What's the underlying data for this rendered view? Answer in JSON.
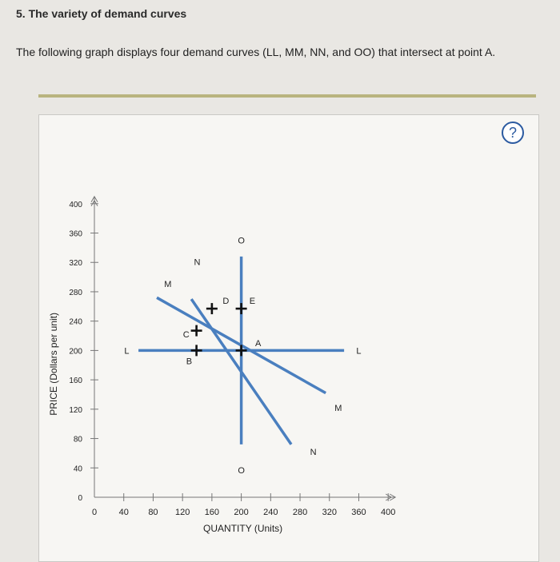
{
  "question": {
    "heading": "5. The variety of demand curves",
    "intro": "The following graph displays four demand curves (LL, MM, NN, and OO) that intersect at point A."
  },
  "help_button": {
    "label": "?"
  },
  "chart_data": {
    "type": "line",
    "xlabel": "QUANTITY (Units)",
    "ylabel": "PRICE (Dollars per unit)",
    "xlim": [
      0,
      400
    ],
    "ylim": [
      0,
      400
    ],
    "xticks": [
      0,
      40,
      80,
      120,
      160,
      200,
      240,
      280,
      320,
      360,
      400
    ],
    "yticks": [
      0,
      40,
      80,
      120,
      160,
      200,
      240,
      280,
      320,
      360,
      400
    ],
    "line_color": "#4a7fbf",
    "series": [
      {
        "name": "L",
        "endpoints": [
          [
            60,
            200
          ],
          [
            340,
            200
          ]
        ],
        "labels": [
          {
            "text": "L",
            "at": [
              44,
              200
            ]
          },
          {
            "text": "L",
            "at": [
              360,
              200
            ]
          }
        ]
      },
      {
        "name": "M",
        "endpoints": [
          [
            85,
            272
          ],
          [
            315,
            142
          ]
        ],
        "labels": [
          {
            "text": "M",
            "at": [
              100,
              291
            ]
          },
          {
            "text": "M",
            "at": [
              332,
              122
            ]
          }
        ]
      },
      {
        "name": "N",
        "endpoints": [
          [
            132,
            270
          ],
          [
            268,
            72
          ]
        ],
        "labels": [
          {
            "text": "N",
            "at": [
              140,
              321
            ]
          },
          {
            "text": "N",
            "at": [
              298,
              62
            ]
          }
        ]
      },
      {
        "name": "O",
        "endpoints": [
          [
            200,
            328
          ],
          [
            200,
            72
          ]
        ],
        "labels": [
          {
            "text": "O",
            "at": [
              200,
              350
            ]
          },
          {
            "text": "O",
            "at": [
              200,
              37
            ]
          }
        ]
      }
    ],
    "points": [
      {
        "label": "A",
        "x": 200,
        "y": 200,
        "label_at": [
          223,
          210
        ]
      },
      {
        "label": "B",
        "x": 139,
        "y": 200,
        "label_at": [
          129,
          186
        ]
      },
      {
        "label": "C",
        "x": 139,
        "y": 227,
        "label_at": [
          125,
          222
        ]
      },
      {
        "label": "D",
        "x": 160,
        "y": 257,
        "label_at": [
          179,
          268
        ]
      },
      {
        "label": "E",
        "x": 200,
        "y": 257,
        "label_at": [
          215,
          268
        ]
      }
    ]
  }
}
